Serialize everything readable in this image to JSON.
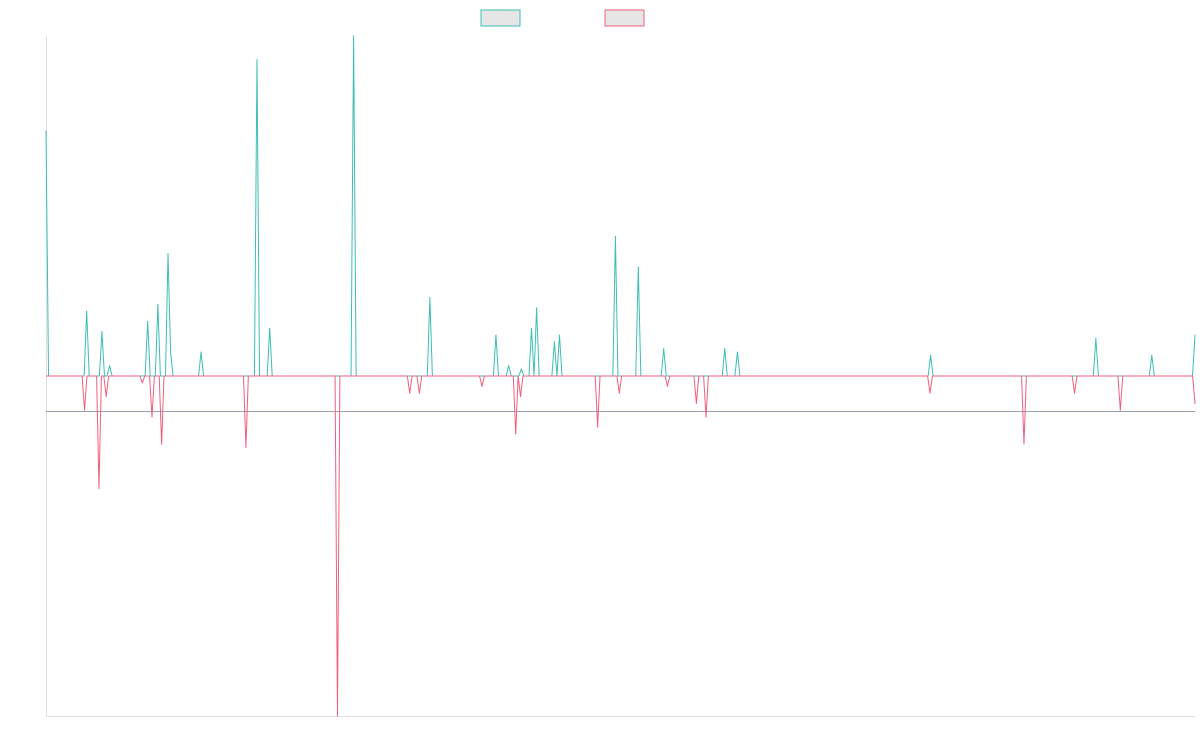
{
  "chart_data": {
    "type": "line",
    "title": "",
    "xlabel": "",
    "ylabel": "",
    "grid": false,
    "legend_position": "top",
    "ylim": [
      -1,
      1
    ],
    "series": [
      {
        "color": "#3dbfb5",
        "values": [
          0.72,
          0,
          0,
          0,
          0,
          0,
          0,
          0,
          0,
          0,
          0,
          0,
          0,
          0,
          0,
          0,
          0.19,
          0,
          0,
          0,
          0,
          0,
          0.13,
          0,
          0,
          0.03,
          0,
          0,
          0,
          0,
          0,
          0,
          0,
          0,
          0,
          0,
          0,
          0,
          0,
          0,
          0.16,
          0,
          0,
          0,
          0.21,
          0,
          0,
          0,
          0.36,
          0.07,
          0,
          0,
          0,
          0,
          0,
          0,
          0,
          0,
          0,
          0,
          0,
          0.07,
          0,
          0,
          0,
          0,
          0,
          0,
          0,
          0,
          0,
          0,
          0,
          0,
          0,
          0,
          0,
          0,
          0,
          0,
          0,
          0,
          0,
          0.93,
          0,
          0,
          0,
          0,
          0.14,
          0,
          0,
          0,
          0,
          0,
          0,
          0,
          0,
          0,
          0,
          0,
          0,
          0,
          0,
          0,
          0,
          0,
          0,
          0,
          0,
          0,
          0,
          0,
          0,
          0,
          0,
          0,
          0,
          0,
          0,
          0,
          0,
          1.0,
          0,
          0,
          0,
          0,
          0,
          0,
          0,
          0,
          0,
          0,
          0,
          0,
          0,
          0,
          0,
          0,
          0,
          0,
          0,
          0,
          0,
          0,
          0,
          0,
          0,
          0,
          0,
          0,
          0,
          0.23,
          0,
          0,
          0,
          0,
          0,
          0,
          0,
          0,
          0,
          0,
          0,
          0,
          0,
          0,
          0,
          0,
          0,
          0,
          0,
          0,
          0,
          0,
          0,
          0,
          0,
          0.12,
          0,
          0,
          0,
          0,
          0.03,
          0,
          0,
          0,
          0,
          0.02,
          0,
          0,
          0,
          0.14,
          0,
          0.2,
          0,
          0,
          0,
          0,
          0,
          0,
          0.1,
          0,
          0.12,
          0,
          0,
          0,
          0,
          0,
          0,
          0,
          0,
          0,
          0,
          0,
          0,
          0,
          0,
          0,
          0,
          0,
          0,
          0,
          0,
          0,
          0.41,
          0,
          0,
          0,
          0,
          0,
          0,
          0,
          0,
          0.32,
          0,
          0,
          0,
          0,
          0,
          0,
          0,
          0,
          0,
          0.08,
          0,
          0,
          0,
          0,
          0,
          0,
          0,
          0,
          0,
          0,
          0,
          0,
          0,
          0,
          0,
          0,
          0,
          0,
          0,
          0,
          0,
          0,
          0,
          0.08,
          0,
          0,
          0,
          0,
          0.07,
          0,
          0,
          0,
          0,
          0,
          0,
          0,
          0,
          0,
          0,
          0,
          0,
          0,
          0,
          0,
          0,
          0,
          0,
          0,
          0,
          0,
          0,
          0,
          0,
          0,
          0,
          0,
          0,
          0,
          0,
          0,
          0,
          0,
          0,
          0,
          0,
          0,
          0,
          0,
          0,
          0,
          0,
          0,
          0,
          0,
          0,
          0,
          0,
          0,
          0,
          0,
          0,
          0,
          0,
          0,
          0,
          0,
          0,
          0,
          0,
          0,
          0,
          0,
          0,
          0,
          0,
          0,
          0,
          0,
          0,
          0,
          0,
          0,
          0,
          0,
          0.06,
          0,
          0,
          0,
          0,
          0,
          0,
          0,
          0,
          0,
          0,
          0,
          0,
          0,
          0,
          0,
          0,
          0,
          0,
          0,
          0,
          0,
          0,
          0,
          0,
          0,
          0,
          0,
          0,
          0,
          0,
          0,
          0,
          0,
          0,
          0,
          0,
          0,
          0,
          0,
          0,
          0,
          0,
          0,
          0,
          0,
          0,
          0,
          0,
          0,
          0,
          0,
          0,
          0,
          0,
          0,
          0,
          0,
          0,
          0,
          0,
          0,
          0,
          0,
          0,
          0.11,
          0,
          0,
          0,
          0,
          0,
          0,
          0,
          0,
          0,
          0,
          0,
          0,
          0,
          0,
          0,
          0,
          0,
          0,
          0,
          0,
          0,
          0.06,
          0,
          0,
          0,
          0,
          0,
          0,
          0,
          0,
          0,
          0,
          0,
          0,
          0,
          0,
          0,
          0,
          0.12
        ]
      },
      {
        "color": "#f0607e",
        "values": [
          0,
          0,
          0,
          0,
          0,
          0,
          0,
          0,
          0,
          0,
          0,
          0,
          0,
          0,
          0,
          0,
          -0.1,
          0,
          0,
          0,
          0,
          0,
          -0.33,
          0,
          0,
          -0.06,
          0,
          0,
          0,
          0,
          0,
          0,
          0,
          0,
          0,
          0,
          0,
          0,
          0,
          0,
          -0.02,
          0,
          0,
          0,
          -0.12,
          0,
          0,
          0,
          -0.2,
          0,
          0,
          0,
          0,
          0,
          0,
          0,
          0,
          0,
          0,
          0,
          0,
          0,
          0,
          0,
          0,
          0,
          0,
          0,
          0,
          0,
          0,
          0,
          0,
          0,
          0,
          0,
          0,
          0,
          0,
          0,
          0,
          0,
          0,
          -0.21,
          0,
          0,
          0,
          0,
          0,
          0,
          0,
          0,
          0,
          0,
          0,
          0,
          0,
          0,
          0,
          0,
          0,
          0,
          0,
          0,
          0,
          0,
          0,
          0,
          0,
          0,
          0,
          0,
          0,
          0,
          0,
          0,
          0,
          0,
          0,
          0,
          0,
          -1.0,
          0,
          0,
          0,
          0,
          0,
          0,
          0,
          0,
          0,
          0,
          0,
          0,
          0,
          0,
          0,
          0,
          0,
          0,
          0,
          0,
          0,
          0,
          0,
          0,
          0,
          0,
          0,
          0,
          0,
          -0.05,
          0,
          0,
          0,
          -0.05,
          0,
          0,
          0,
          0,
          0,
          0,
          0,
          0,
          0,
          0,
          0,
          0,
          0,
          0,
          0,
          0,
          0,
          0,
          0,
          0,
          0,
          0,
          0,
          0,
          0,
          -0.03,
          0,
          0,
          0,
          0,
          0,
          0,
          0,
          0,
          0,
          0,
          0,
          0,
          0,
          -0.17,
          0,
          -0.06,
          0,
          0,
          0,
          0,
          0,
          0,
          0,
          0,
          0,
          0,
          0,
          0,
          0,
          0,
          0,
          0,
          0,
          0,
          0,
          0,
          0,
          0,
          0,
          0,
          0,
          0,
          0,
          0,
          0,
          0,
          0,
          -0.15,
          0,
          0,
          0,
          0,
          0,
          0,
          0,
          0,
          -0.05,
          0,
          0,
          0,
          0,
          0,
          0,
          0,
          0,
          0,
          0,
          0,
          0,
          0,
          0,
          0,
          0,
          0,
          0,
          0,
          -0.03,
          0,
          0,
          0,
          0,
          0,
          0,
          0,
          0,
          0,
          0,
          0,
          -0.08,
          0,
          0,
          0,
          -0.12,
          0,
          0,
          0,
          0,
          0,
          0,
          0,
          0,
          0,
          0,
          0,
          0,
          0,
          0,
          0,
          0,
          0,
          0,
          0,
          0,
          0,
          0,
          0,
          0,
          0,
          0,
          0,
          0,
          0,
          0,
          0,
          0,
          0,
          0,
          0,
          0,
          0,
          0,
          0,
          0,
          0,
          0,
          0,
          0,
          0,
          0,
          0,
          0,
          0,
          0,
          0,
          0,
          0,
          0,
          0,
          0,
          0,
          0,
          0,
          0,
          0,
          0,
          0,
          0,
          0,
          0,
          0,
          0,
          0,
          0,
          0,
          0,
          0,
          0,
          0,
          0,
          0,
          0,
          0,
          0,
          0,
          0,
          0,
          0,
          0,
          0,
          0,
          0,
          0,
          0,
          0,
          0,
          -0.05,
          0,
          0,
          0,
          0,
          0,
          0,
          0,
          0,
          0,
          0,
          0,
          0,
          0,
          0,
          0,
          0,
          0,
          0,
          0,
          0,
          0,
          0,
          0,
          0,
          0,
          0,
          0,
          0,
          0,
          0,
          0,
          0,
          0,
          0,
          0,
          0,
          0,
          0,
          -0.2,
          0,
          0,
          0,
          0,
          0,
          0,
          0,
          0,
          0,
          0,
          0,
          0,
          0,
          0,
          0,
          0,
          0,
          0,
          0,
          0,
          -0.05,
          0,
          0,
          0,
          0,
          0,
          0,
          0,
          0,
          0,
          0,
          0,
          0,
          0,
          0,
          0,
          0,
          0,
          0,
          -0.1,
          0,
          0,
          0,
          0,
          0,
          0,
          0,
          0,
          0,
          0,
          0,
          0,
          0,
          0,
          0,
          0,
          0,
          0,
          0,
          0,
          0,
          0,
          0,
          0,
          0,
          0,
          0,
          0,
          0,
          0,
          -0.08
        ]
      }
    ]
  }
}
